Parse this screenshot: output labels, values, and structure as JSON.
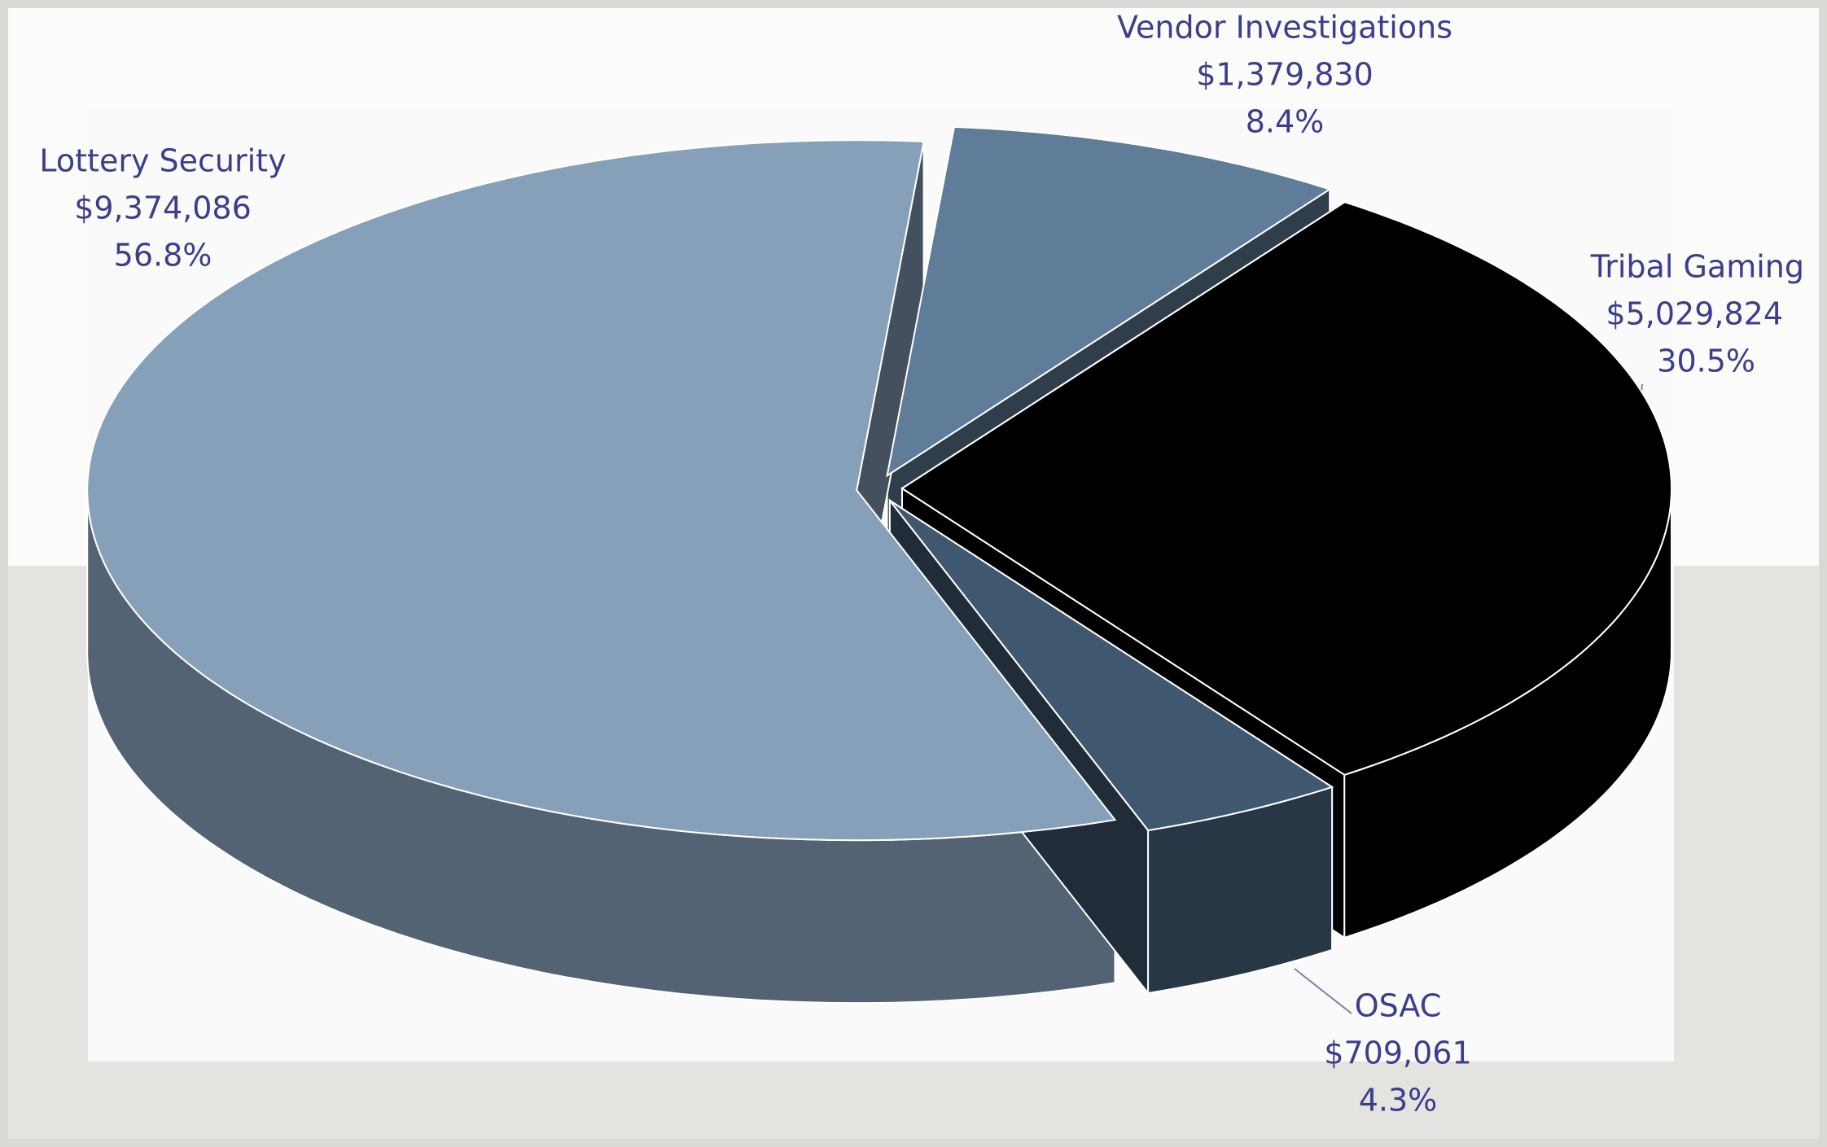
{
  "chart_data": {
    "type": "pie3d",
    "categories": [
      "Vendor Investigations",
      "Tribal Gaming",
      "OSAC",
      "Lottery Security"
    ],
    "values": [
      1379830,
      5029824,
      709061,
      9374086
    ],
    "value_labels": [
      "$1,379,830",
      "$5,029,824",
      "$709,061",
      "$9,374,086"
    ],
    "percents": [
      8.4,
      30.5,
      4.3,
      56.8
    ],
    "percent_labels": [
      "8.4%",
      "30.5%",
      "4.3%",
      "56.8%"
    ],
    "colors": [
      "#5f7c98",
      "#000000",
      "#3f5870",
      "#87a0b9"
    ]
  }
}
